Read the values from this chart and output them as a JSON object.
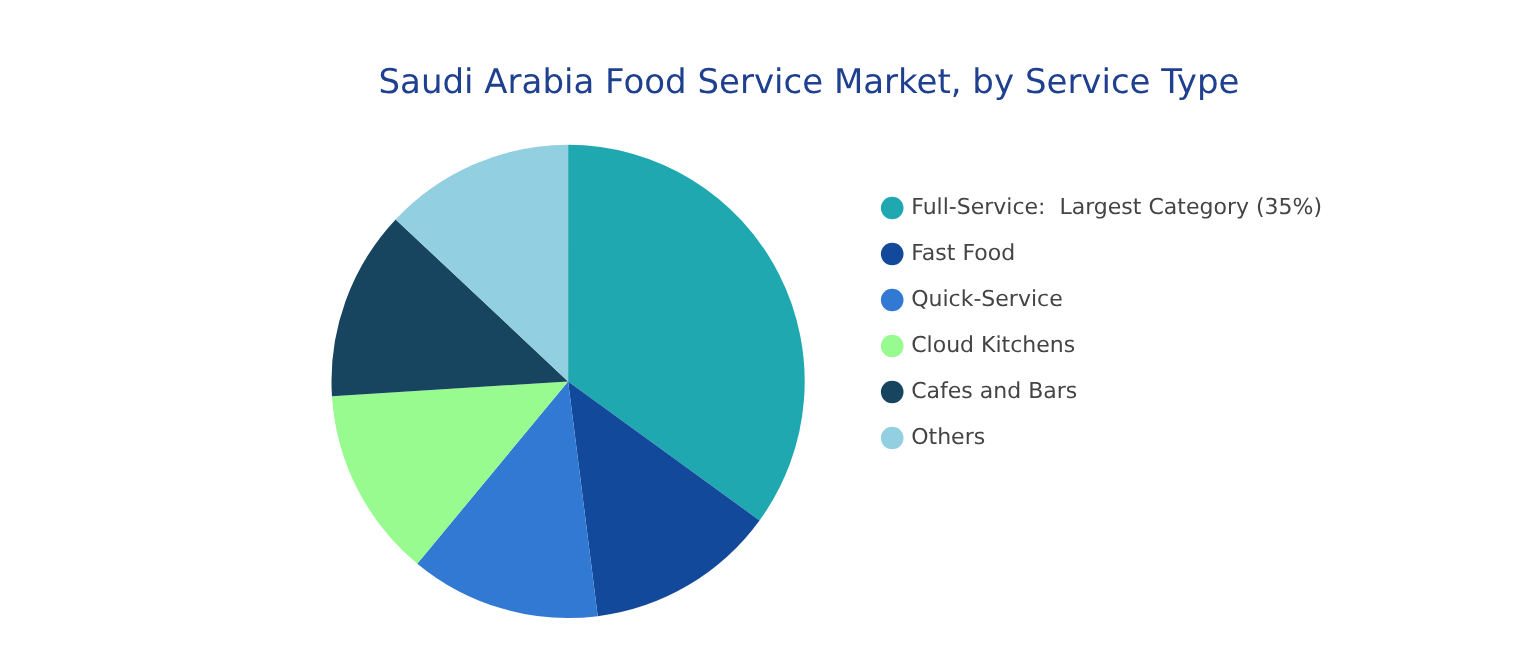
{
  "chart_data": {
    "type": "pie",
    "title": "Saudi Arabia Food Service Market, by Service Type",
    "categories": [
      "Full-Service:  Largest Category (35%)",
      "Fast Food",
      "Quick-Service",
      "Cloud Kitchens",
      "Cafes and Bars",
      "Others"
    ],
    "values": [
      35,
      13,
      13,
      13,
      13,
      13
    ],
    "colors": [
      "#1fa8b0",
      "#13499a",
      "#3179d3",
      "#98fb8f",
      "#17445f",
      "#92cfe0"
    ],
    "legend": "right"
  }
}
